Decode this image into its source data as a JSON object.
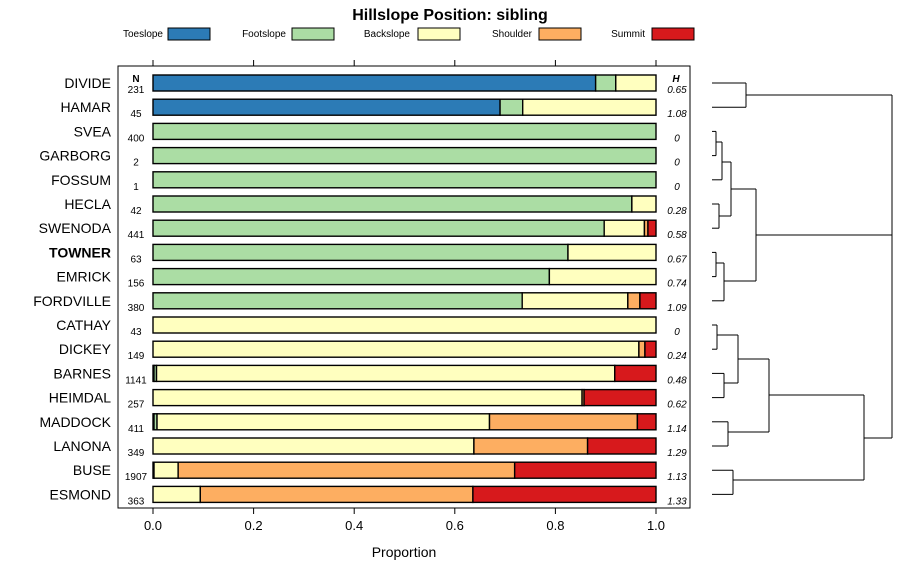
{
  "chart_data": {
    "type": "bar",
    "orientation": "horizontal",
    "stacked": true,
    "title": "Hillslope Position: sibling",
    "xlabel": "Proportion",
    "xlim": [
      0,
      1
    ],
    "x_ticks": [
      "0.0",
      "0.2",
      "0.4",
      "0.6",
      "0.8",
      "1.0"
    ],
    "n_header": "N",
    "h_header": "H",
    "highlighted": "TOWNER",
    "legend": [
      {
        "name": "Toeslope",
        "color": "#2c7bb6"
      },
      {
        "name": "Footslope",
        "color": "#abdda4"
      },
      {
        "name": "Backslope",
        "color": "#ffffbf"
      },
      {
        "name": "Shoulder",
        "color": "#fdae61"
      },
      {
        "name": "Summit",
        "color": "#d7191c"
      }
    ],
    "rows": [
      {
        "name": "DIVIDE",
        "n": "231",
        "h": "0.65",
        "values": [
          0.88,
          0.04,
          0.08,
          0,
          0
        ]
      },
      {
        "name": "HAMAR",
        "n": "45",
        "h": "1.08",
        "values": [
          0.69,
          0.045,
          0.265,
          0,
          0
        ]
      },
      {
        "name": "SVEA",
        "n": "400",
        "h": "0",
        "values": [
          0,
          1.0,
          0,
          0,
          0
        ]
      },
      {
        "name": "GARBORG",
        "n": "2",
        "h": "0",
        "values": [
          0,
          1.0,
          0,
          0,
          0
        ]
      },
      {
        "name": "FOSSUM",
        "n": "1",
        "h": "0",
        "values": [
          0,
          1.0,
          0,
          0,
          0
        ]
      },
      {
        "name": "HECLA",
        "n": "42",
        "h": "0.28",
        "values": [
          0,
          0.952,
          0.048,
          0,
          0
        ]
      },
      {
        "name": "SWENODA",
        "n": "441",
        "h": "0.58",
        "values": [
          0,
          0.897,
          0.08,
          0.007,
          0.016
        ]
      },
      {
        "name": "TOWNER",
        "n": "63",
        "h": "0.67",
        "values": [
          0,
          0.825,
          0.175,
          0,
          0
        ]
      },
      {
        "name": "EMRICK",
        "n": "156",
        "h": "0.74",
        "values": [
          0,
          0.788,
          0.212,
          0,
          0
        ]
      },
      {
        "name": "FORDVILLE",
        "n": "380",
        "h": "1.09",
        "values": [
          0,
          0.734,
          0.21,
          0.024,
          0.032
        ]
      },
      {
        "name": "CATHAY",
        "n": "43",
        "h": "0",
        "values": [
          0,
          0,
          1.0,
          0,
          0
        ]
      },
      {
        "name": "DICKEY",
        "n": "149",
        "h": "0.24",
        "values": [
          0,
          0,
          0.966,
          0.012,
          0.022
        ]
      },
      {
        "name": "BARNES",
        "n": "1141",
        "h": "0.48",
        "values": [
          0.002,
          0.005,
          0.911,
          0,
          0.082
        ]
      },
      {
        "name": "HEIMDAL",
        "n": "257",
        "h": "0.62",
        "values": [
          0,
          0,
          0.853,
          0.004,
          0.143
        ]
      },
      {
        "name": "MADDOCK",
        "n": "411",
        "h": "1.14",
        "values": [
          0.002,
          0.006,
          0.661,
          0.294,
          0.037
        ]
      },
      {
        "name": "LANONA",
        "n": "349",
        "h": "1.29",
        "values": [
          0,
          0,
          0.638,
          0.226,
          0.136
        ]
      },
      {
        "name": "BUSE",
        "n": "1907",
        "h": "1.13",
        "values": [
          0,
          0.002,
          0.048,
          0.669,
          0.281
        ]
      },
      {
        "name": "ESMOND",
        "n": "363",
        "h": "1.33",
        "values": [
          0,
          0,
          0.094,
          0.542,
          0.364
        ]
      }
    ]
  }
}
